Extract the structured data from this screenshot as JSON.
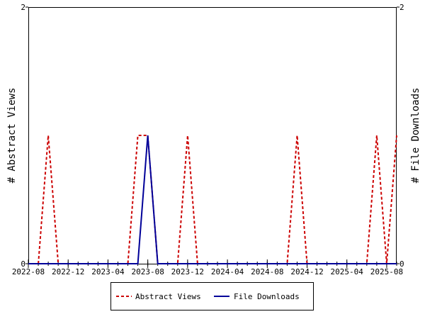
{
  "chart_data": {
    "type": "line",
    "title": "",
    "ylabel_left": "# Abstract Views",
    "ylabel_right": "# File Downloads",
    "ylim_left": [
      0,
      2
    ],
    "ylim_right": [
      0,
      2
    ],
    "y_ticks_left": [
      "0",
      "2"
    ],
    "y_ticks_right": [
      "0",
      "2"
    ],
    "x_range": [
      "2022-08",
      "2025-09"
    ],
    "x_tick_labels": [
      "2022-08",
      "2022-12",
      "2023-04",
      "2023-08",
      "2023-12",
      "2024-04",
      "2024-08",
      "2024-12",
      "2025-04",
      "2025-08"
    ],
    "grid": false,
    "legend_position": "bottom",
    "series": [
      {
        "name": "Abstract Views",
        "axis": "left",
        "color": "#cc0000",
        "line_style": "dashed",
        "points": [
          [
            "2022-09",
            0
          ],
          [
            "2022-10",
            1
          ],
          [
            "2022-11",
            0
          ],
          [
            "2023-01",
            0
          ],
          [
            "2023-04",
            0
          ],
          [
            "2023-06",
            0
          ],
          [
            "2023-07",
            1
          ],
          [
            "2023-08",
            1
          ],
          [
            "2023-09",
            0
          ],
          [
            "2023-11",
            0
          ],
          [
            "2023-12",
            1
          ],
          [
            "2024-01",
            0
          ],
          [
            "2024-05",
            0
          ],
          [
            "2024-10",
            0
          ],
          [
            "2024-11",
            1
          ],
          [
            "2024-12",
            0
          ],
          [
            "2025-06",
            0
          ],
          [
            "2025-07",
            1
          ],
          [
            "2025-08",
            0
          ],
          [
            "2025-09",
            1
          ]
        ]
      },
      {
        "name": "File Downloads",
        "axis": "right",
        "color": "#000099",
        "line_style": "solid",
        "points": [
          [
            "2022-08",
            0
          ],
          [
            "2023-07",
            0
          ],
          [
            "2023-08",
            1
          ],
          [
            "2023-09",
            0
          ],
          [
            "2025-09",
            0
          ]
        ]
      }
    ]
  }
}
